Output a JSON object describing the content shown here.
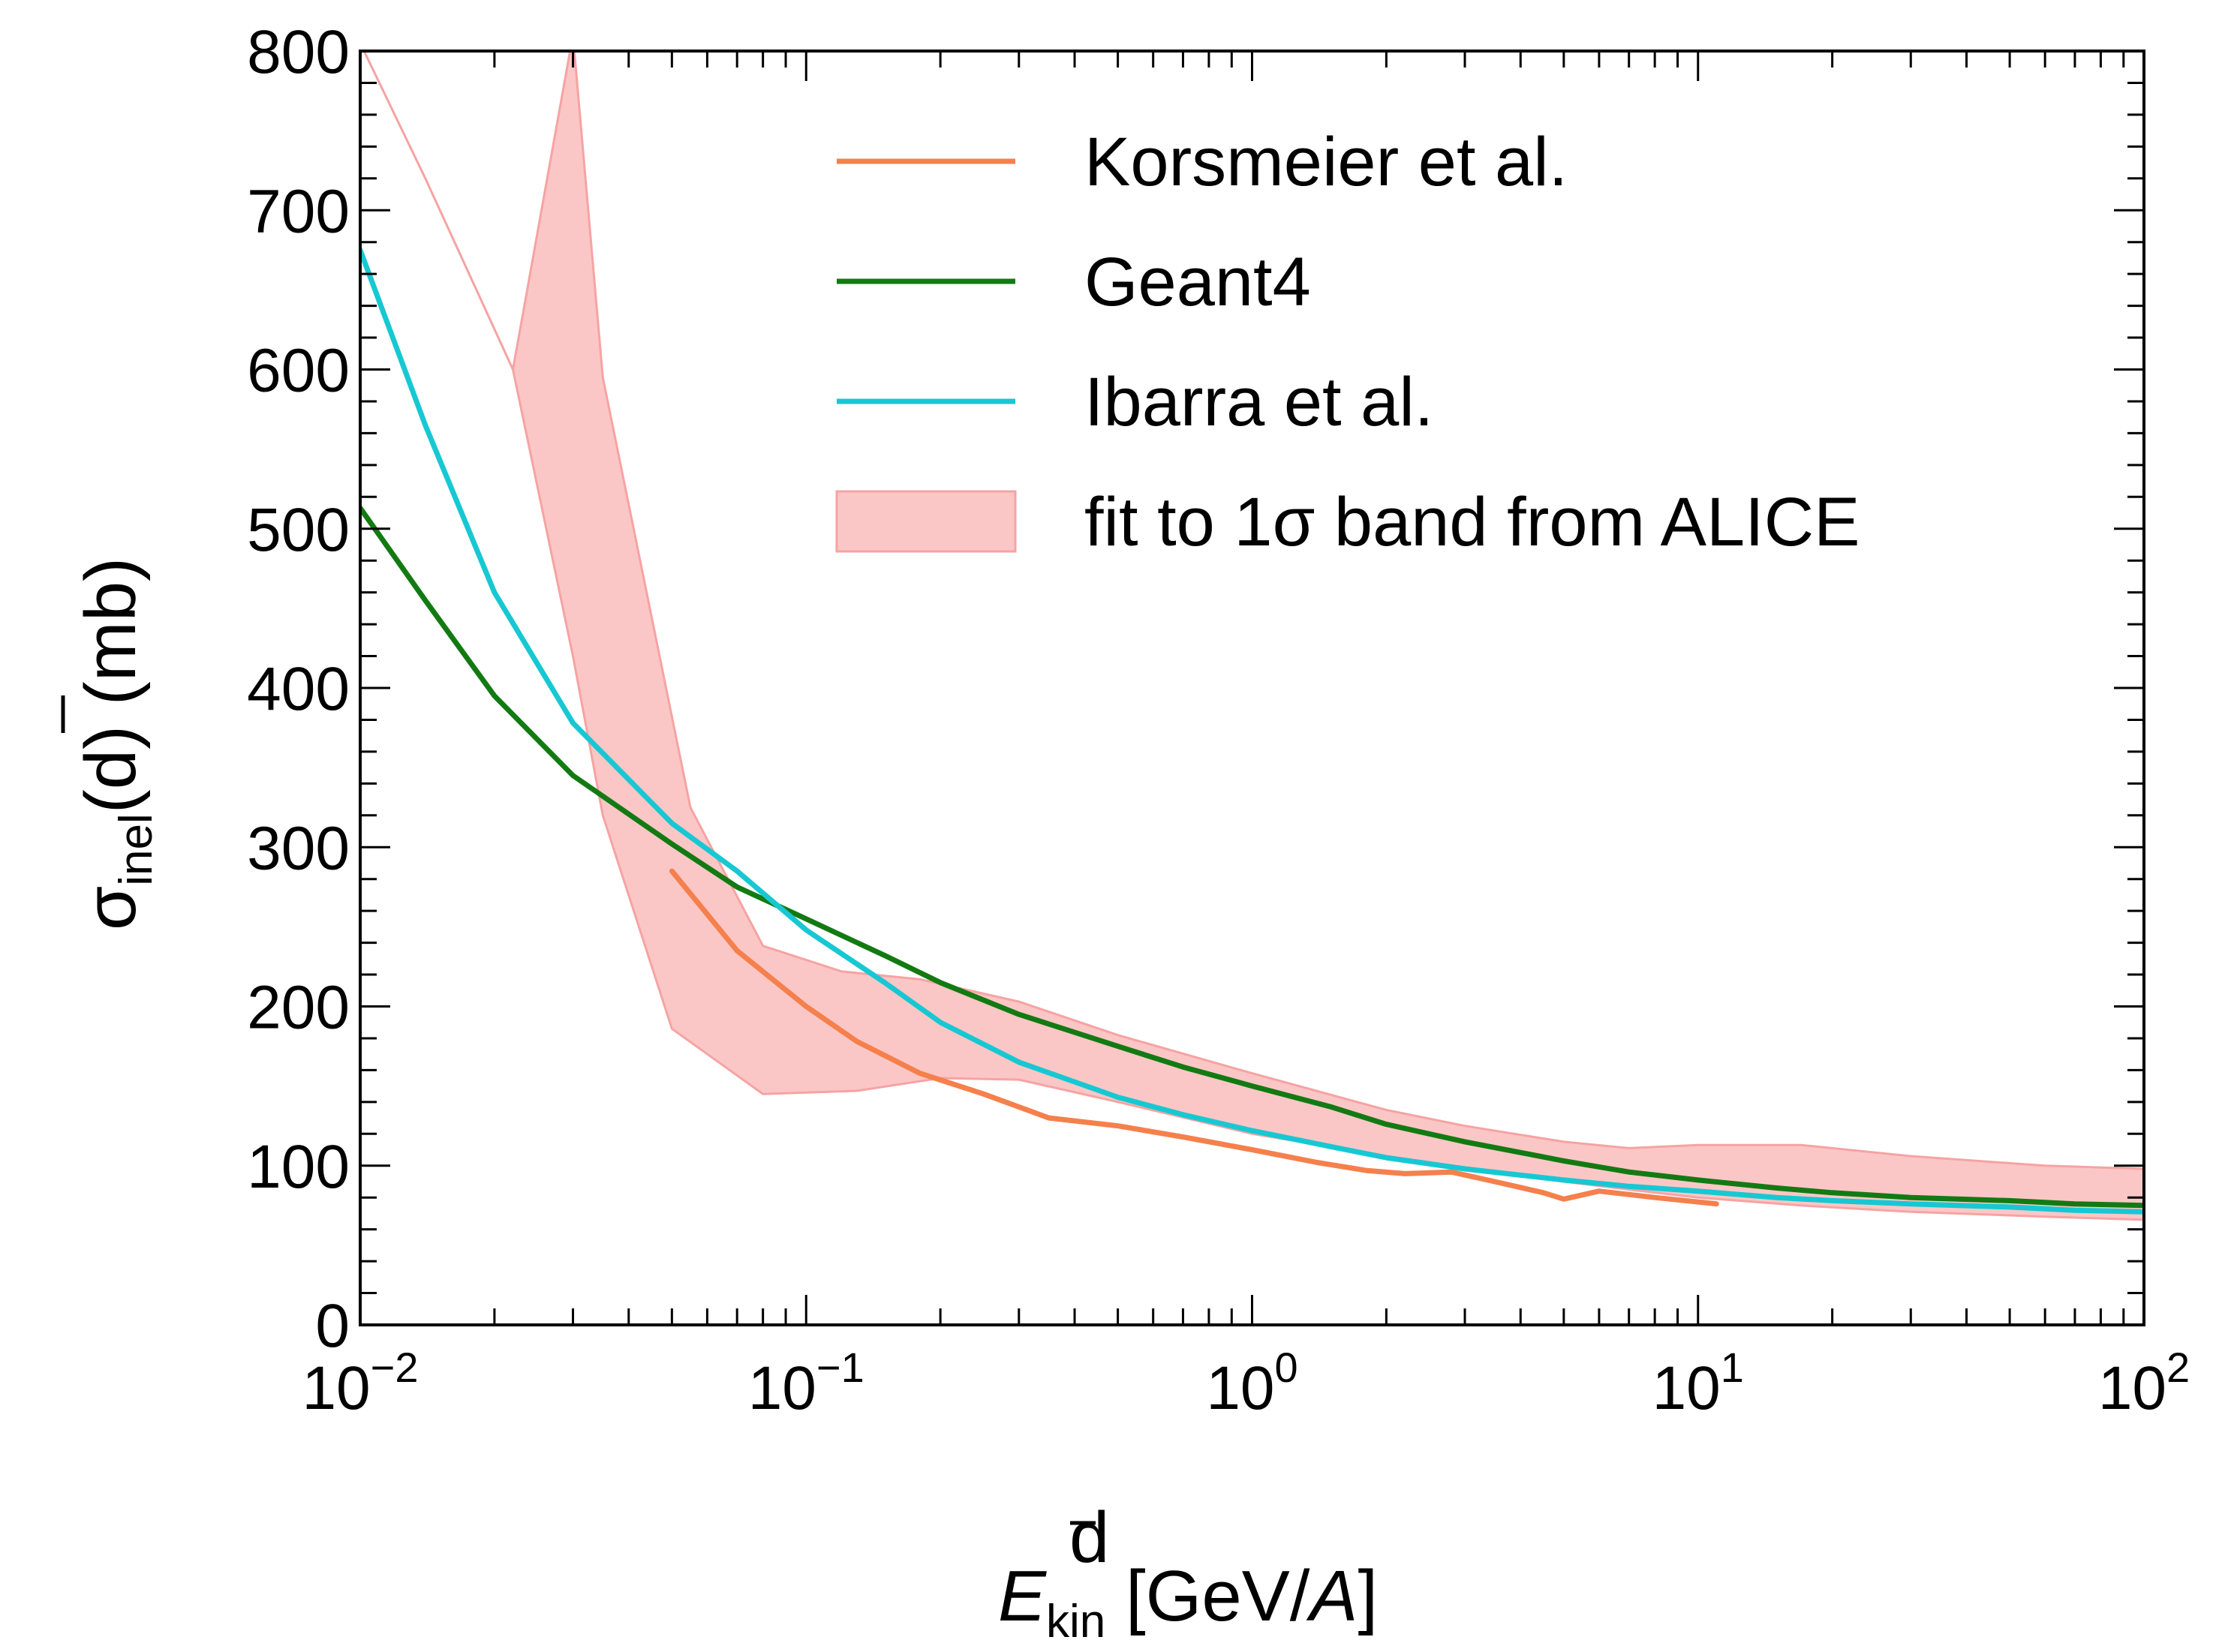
{
  "chart_data": {
    "type": "line",
    "x_scale": "log",
    "xlim": [
      0.01,
      100
    ],
    "ylim": [
      0,
      800
    ],
    "xticks": [
      {
        "value": 0.01,
        "base": "10",
        "exp": "−2"
      },
      {
        "value": 0.1,
        "base": "10",
        "exp": "−1"
      },
      {
        "value": 1,
        "base": "10",
        "exp": "0"
      },
      {
        "value": 10,
        "base": "10",
        "exp": "1"
      },
      {
        "value": 100,
        "base": "10",
        "exp": "2"
      }
    ],
    "yticks": [
      "0",
      "100",
      "200",
      "300",
      "400",
      "500",
      "600",
      "700",
      "800"
    ],
    "xlabel": {
      "main": "E",
      "sup": "d",
      "sub": "kin",
      "rest": " [GeV/",
      "italic_unit": "A",
      "end": "]"
    },
    "ylabel": {
      "main": "σ",
      "sub": "inel",
      "rest_open": "(",
      "bar_char": "d",
      "rest_close": ") (mb)"
    },
    "legend": {
      "position": "top-right",
      "entries": [
        {
          "label": "Korsmeier et al.",
          "series": "korsmeier"
        },
        {
          "label": "Geant4",
          "series": "geant4"
        },
        {
          "label": "Ibarra et al.",
          "series": "ibarra"
        },
        {
          "label": "fit to 1σ band from ALICE",
          "series": "alice_band"
        }
      ]
    },
    "series": [
      {
        "id": "korsmeier",
        "name": "Korsmeier et al.",
        "color": "#f5804c",
        "points": [
          [
            0.05,
            285
          ],
          [
            0.07,
            235
          ],
          [
            0.1,
            200
          ],
          [
            0.13,
            178
          ],
          [
            0.18,
            158
          ],
          [
            0.25,
            145
          ],
          [
            0.35,
            130
          ],
          [
            0.5,
            125
          ],
          [
            0.7,
            118
          ],
          [
            1.0,
            110
          ],
          [
            1.4,
            102
          ],
          [
            1.8,
            97
          ],
          [
            2.2,
            95
          ],
          [
            2.8,
            96
          ],
          [
            3.5,
            90
          ],
          [
            4.5,
            83
          ],
          [
            5.0,
            79
          ],
          [
            6.0,
            84
          ],
          [
            8.0,
            80
          ],
          [
            11.0,
            76
          ]
        ]
      },
      {
        "id": "geant4",
        "name": "Geant4",
        "color": "#137a13",
        "points": [
          [
            0.01,
            513
          ],
          [
            0.014,
            455
          ],
          [
            0.02,
            395
          ],
          [
            0.03,
            345
          ],
          [
            0.05,
            302
          ],
          [
            0.07,
            275
          ],
          [
            0.1,
            255
          ],
          [
            0.15,
            232
          ],
          [
            0.2,
            215
          ],
          [
            0.3,
            195
          ],
          [
            0.5,
            175
          ],
          [
            0.7,
            162
          ],
          [
            1,
            150
          ],
          [
            1.5,
            137
          ],
          [
            2,
            126
          ],
          [
            3,
            115
          ],
          [
            5,
            103
          ],
          [
            7,
            96
          ],
          [
            10,
            91
          ],
          [
            15,
            86
          ],
          [
            20,
            83
          ],
          [
            30,
            80
          ],
          [
            50,
            78
          ],
          [
            70,
            76
          ],
          [
            100,
            75
          ]
        ]
      },
      {
        "id": "ibarra",
        "name": "Ibarra et al.",
        "color": "#17c8d3",
        "points": [
          [
            0.01,
            675
          ],
          [
            0.014,
            565
          ],
          [
            0.02,
            460
          ],
          [
            0.03,
            378
          ],
          [
            0.05,
            315
          ],
          [
            0.07,
            285
          ],
          [
            0.1,
            248
          ],
          [
            0.15,
            215
          ],
          [
            0.2,
            190
          ],
          [
            0.3,
            165
          ],
          [
            0.5,
            143
          ],
          [
            0.7,
            132
          ],
          [
            1,
            122
          ],
          [
            1.5,
            112
          ],
          [
            2,
            105
          ],
          [
            3,
            98
          ],
          [
            5,
            91
          ],
          [
            7,
            87
          ],
          [
            10,
            84
          ],
          [
            15,
            80
          ],
          [
            20,
            78
          ],
          [
            30,
            76
          ],
          [
            50,
            74
          ],
          [
            70,
            72
          ],
          [
            100,
            71
          ]
        ]
      }
    ],
    "band": {
      "id": "alice_band",
      "name": "fit to 1σ band from ALICE",
      "fill": "#fbc7c6",
      "edge": "#f6a3a3",
      "upper": [
        [
          0.01,
          805
        ],
        [
          0.014,
          720
        ],
        [
          0.022,
          600
        ],
        [
          0.03,
          810
        ],
        [
          0.035,
          595
        ],
        [
          0.055,
          325
        ],
        [
          0.08,
          238
        ],
        [
          0.12,
          222
        ],
        [
          0.18,
          217
        ],
        [
          0.3,
          203
        ],
        [
          0.5,
          182
        ],
        [
          1,
          158
        ],
        [
          2,
          135
        ],
        [
          3,
          125
        ],
        [
          5,
          115
        ],
        [
          7,
          111
        ],
        [
          10,
          113
        ],
        [
          17,
          113
        ],
        [
          30,
          106
        ],
        [
          60,
          100
        ],
        [
          100,
          98
        ]
      ],
      "lower": [
        [
          0.01,
          805
        ],
        [
          0.014,
          720
        ],
        [
          0.022,
          600
        ],
        [
          0.03,
          420
        ],
        [
          0.035,
          320
        ],
        [
          0.05,
          186
        ],
        [
          0.08,
          145
        ],
        [
          0.13,
          147
        ],
        [
          0.2,
          155
        ],
        [
          0.3,
          154
        ],
        [
          0.5,
          140
        ],
        [
          1,
          120
        ],
        [
          2,
          106
        ],
        [
          3,
          99
        ],
        [
          5,
          90
        ],
        [
          7,
          85
        ],
        [
          10,
          80
        ],
        [
          17,
          75
        ],
        [
          30,
          71
        ],
        [
          60,
          68
        ],
        [
          100,
          66
        ]
      ]
    }
  }
}
